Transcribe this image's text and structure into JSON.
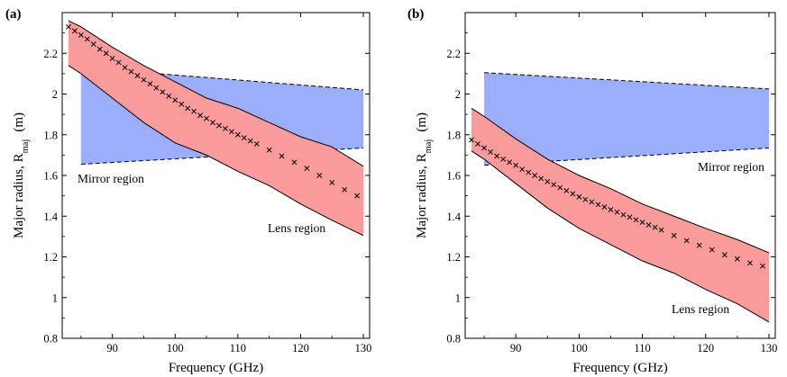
{
  "chart_data": [
    {
      "panel_label": "(a)",
      "type": "area",
      "xlabel": "Frequency (GHz)",
      "ylabel_main": "Major radius, R",
      "ylabel_sub": "maj",
      "ylabel_unit": "(m)",
      "xlim": [
        82,
        131
      ],
      "ylim": [
        0.8,
        2.4
      ],
      "xticks": [
        90,
        100,
        110,
        120,
        130
      ],
      "yticks": [
        0.8,
        1,
        1.2,
        1.4,
        1.6,
        1.8,
        2,
        2.2
      ],
      "xtick_labels": [
        "90",
        "100",
        "110",
        "120",
        "130"
      ],
      "ytick_labels": [
        "0.8",
        "1",
        "1.2",
        "1.4",
        "1.6",
        "1.8",
        "2",
        "2.2"
      ],
      "series": [
        {
          "name": "Mirror region",
          "color": "#9aaefc",
          "x": [
            85,
            130
          ],
          "upper": [
            2.13,
            2.02
          ],
          "lower": [
            1.655,
            1.735
          ]
        },
        {
          "name": "Lens region",
          "color": "#fc9b9b",
          "x": [
            83,
            85,
            90,
            95,
            100,
            105,
            110,
            115,
            120,
            125,
            130
          ],
          "upper": [
            2.36,
            2.33,
            2.23,
            2.14,
            2.06,
            1.98,
            1.93,
            1.86,
            1.79,
            1.74,
            1.645
          ],
          "lower": [
            2.14,
            2.1,
            1.98,
            1.86,
            1.76,
            1.7,
            1.62,
            1.55,
            1.46,
            1.38,
            1.305
          ]
        },
        {
          "name": "",
          "marker": "x",
          "x": [
            83,
            84,
            85,
            86,
            87,
            88,
            89,
            90,
            91,
            92,
            93,
            94,
            95,
            96,
            97,
            98,
            99,
            100,
            101,
            102,
            103,
            104,
            105,
            106,
            107,
            108,
            109,
            110,
            111,
            112,
            113,
            115,
            117,
            119,
            121,
            123,
            125,
            127,
            129
          ],
          "y": [
            2.33,
            2.31,
            2.29,
            2.27,
            2.245,
            2.22,
            2.2,
            2.175,
            2.155,
            2.13,
            2.11,
            2.09,
            2.07,
            2.05,
            2.03,
            2.01,
            1.99,
            1.97,
            1.95,
            1.93,
            1.915,
            1.895,
            1.88,
            1.86,
            1.845,
            1.83,
            1.815,
            1.8,
            1.785,
            1.77,
            1.755,
            1.725,
            1.695,
            1.665,
            1.635,
            1.6,
            1.565,
            1.53,
            1.5
          ]
        }
      ],
      "annotations": [
        "Mirror region",
        "Lens region"
      ]
    },
    {
      "panel_label": "(b)",
      "type": "area",
      "xlabel": "Frequency (GHz)",
      "ylabel_main": "Major radius, R",
      "ylabel_sub": "maj",
      "ylabel_unit": "(m)",
      "xlim": [
        82,
        131
      ],
      "ylim": [
        0.8,
        2.4
      ],
      "xticks": [
        90,
        100,
        110,
        120,
        130
      ],
      "yticks": [
        0.8,
        1,
        1.2,
        1.4,
        1.6,
        1.8,
        2,
        2.2
      ],
      "xtick_labels": [
        "90",
        "100",
        "110",
        "120",
        "130"
      ],
      "ytick_labels": [
        "0.8",
        "1",
        "1.2",
        "1.4",
        "1.6",
        "1.8",
        "2",
        "2.2"
      ],
      "series": [
        {
          "name": "Mirror region",
          "color": "#9aaefc",
          "x": [
            85,
            130
          ],
          "upper": [
            2.105,
            2.025
          ],
          "lower": [
            1.65,
            1.735
          ]
        },
        {
          "name": "Lens region",
          "color": "#fc9b9b",
          "x": [
            83,
            85,
            90,
            95,
            100,
            105,
            110,
            115,
            120,
            125,
            130
          ],
          "upper": [
            1.93,
            1.89,
            1.78,
            1.68,
            1.6,
            1.535,
            1.46,
            1.4,
            1.34,
            1.285,
            1.22
          ],
          "lower": [
            1.72,
            1.68,
            1.56,
            1.44,
            1.34,
            1.26,
            1.18,
            1.12,
            1.04,
            0.97,
            0.88
          ]
        },
        {
          "name": "",
          "marker": "x",
          "x": [
            83,
            84,
            85,
            86,
            87,
            88,
            89,
            90,
            91,
            92,
            93,
            94,
            95,
            96,
            97,
            98,
            99,
            100,
            101,
            102,
            103,
            104,
            105,
            106,
            107,
            108,
            109,
            110,
            111,
            112,
            113,
            115,
            117,
            119,
            121,
            123,
            125,
            127,
            129
          ],
          "y": [
            1.775,
            1.755,
            1.735,
            1.715,
            1.695,
            1.68,
            1.665,
            1.65,
            1.63,
            1.615,
            1.6,
            1.585,
            1.57,
            1.555,
            1.54,
            1.525,
            1.51,
            1.495,
            1.482,
            1.47,
            1.457,
            1.445,
            1.432,
            1.42,
            1.407,
            1.395,
            1.382,
            1.37,
            1.357,
            1.345,
            1.332,
            1.305,
            1.28,
            1.257,
            1.235,
            1.21,
            1.19,
            1.17,
            1.155
          ]
        }
      ],
      "annotations": [
        "Mirror region",
        "Lens region"
      ]
    }
  ]
}
